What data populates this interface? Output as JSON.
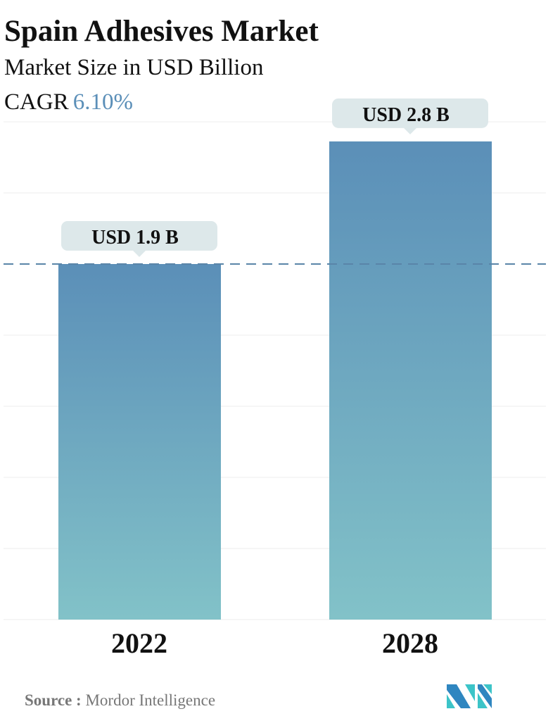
{
  "title": "Spain Adhesives Market",
  "subtitle": "Market Size in USD Billion",
  "cagr_label": "CAGR",
  "cagr_value": "6.10%",
  "source_label": "Source :",
  "source_value": "Mordor Intelligence",
  "colors": {
    "bar_top": "#5b8fb8",
    "bar_bottom": "#82c2c8",
    "callout": "#dde8ea",
    "cagr": "#5b8fb8"
  },
  "chart_data": {
    "type": "bar",
    "categories": [
      "2022",
      "2028"
    ],
    "values": [
      1.9,
      2.8
    ],
    "data_labels": [
      "USD 1.9 B",
      "USD 2.8 B"
    ],
    "reference_line": {
      "value": 1.9,
      "style": "dashed"
    },
    "grid": true
  }
}
